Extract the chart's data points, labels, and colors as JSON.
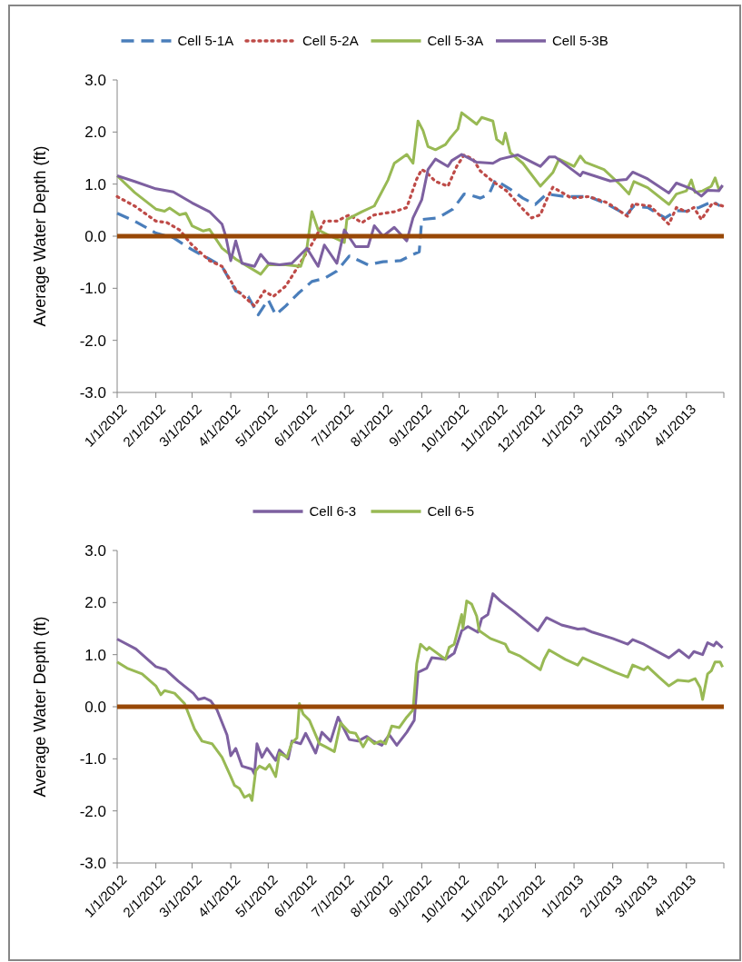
{
  "chart_data": [
    {
      "type": "line",
      "ylabel": "Average Water Depth (ft)",
      "legend": "top",
      "grid": false,
      "xlim": [
        "2012-01-01",
        "2013-05-01"
      ],
      "xticks": [
        {
          "value": "2012-01-01",
          "label": "1/1/2012"
        },
        {
          "value": "2012-02-01",
          "label": "2/1/2012"
        },
        {
          "value": "2012-03-01",
          "label": "3/1/2012"
        },
        {
          "value": "2012-04-01",
          "label": "4/1/2012"
        },
        {
          "value": "2012-05-01",
          "label": "5/1/2012"
        },
        {
          "value": "2012-06-01",
          "label": "6/1/2012"
        },
        {
          "value": "2012-07-01",
          "label": "7/1/2012"
        },
        {
          "value": "2012-08-01",
          "label": "8/1/2012"
        },
        {
          "value": "2012-09-01",
          "label": "9/1/2012"
        },
        {
          "value": "2012-10-01",
          "label": "10/1/2012"
        },
        {
          "value": "2012-11-01",
          "label": "11/1/2012"
        },
        {
          "value": "2012-12-01",
          "label": "12/1/2012"
        },
        {
          "value": "2013-01-01",
          "label": "1/1/2013"
        },
        {
          "value": "2013-02-01",
          "label": "2/1/2013"
        },
        {
          "value": "2013-03-01",
          "label": "3/1/2013"
        },
        {
          "value": "2013-04-01",
          "label": "4/1/2013"
        },
        {
          "value": "2013-05-01",
          "label": null
        }
      ],
      "ylim": [
        -3,
        3
      ],
      "yticks": [
        {
          "value": 3,
          "label": "3.0"
        },
        {
          "value": 2,
          "label": "2.0"
        },
        {
          "value": 1,
          "label": "1.0"
        },
        {
          "value": 0,
          "label": "0.0"
        },
        {
          "value": -1,
          "label": "-1.0"
        },
        {
          "value": -2,
          "label": "-2.0"
        },
        {
          "value": -3,
          "label": "-3.0"
        }
      ],
      "ref_lines": [
        {
          "axis": "y",
          "value": 0,
          "color": "#984807"
        }
      ],
      "series": [
        {
          "name": "Cell 5-1A",
          "color": "#4a7ebb",
          "line_style": "dashed",
          "x": [
            "2012-01-01",
            "2012-01-15",
            "2012-02-01",
            "2012-02-15",
            "2012-03-01",
            "2012-03-15",
            "2012-03-25",
            "2012-04-05",
            "2012-04-15",
            "2012-04-23",
            "2012-05-01",
            "2012-05-07",
            "2012-05-15",
            "2012-05-25",
            "2012-06-05",
            "2012-06-15",
            "2012-06-25",
            "2012-07-05",
            "2012-07-20",
            "2012-08-01",
            "2012-08-15",
            "2012-08-25",
            "2012-08-30",
            "2012-09-01",
            "2012-09-14",
            "2012-09-26",
            "2012-10-05",
            "2012-10-11",
            "2012-10-18",
            "2012-10-25",
            "2012-10-30",
            "2012-11-11",
            "2012-11-21",
            "2012-12-01",
            "2012-12-10",
            "2012-12-25",
            "2013-01-13",
            "2013-01-28",
            "2013-02-12",
            "2013-02-18",
            "2013-03-01",
            "2013-03-15",
            "2013-03-24",
            "2013-04-01",
            "2013-04-11",
            "2013-04-22",
            "2013-04-28"
          ],
          "values": [
            0.44,
            0.29,
            0.06,
            -0.03,
            -0.26,
            -0.44,
            -0.58,
            -1.05,
            -1.16,
            -1.51,
            -1.22,
            -1.51,
            -1.34,
            -1.1,
            -0.87,
            -0.81,
            -0.67,
            -0.38,
            -0.55,
            -0.49,
            -0.47,
            -0.35,
            -0.3,
            0.32,
            0.35,
            0.52,
            0.81,
            0.78,
            0.73,
            0.81,
            1.08,
            0.9,
            0.73,
            0.61,
            0.81,
            0.76,
            0.76,
            0.61,
            0.41,
            0.58,
            0.55,
            0.35,
            0.49,
            0.48,
            0.55,
            0.67,
            0.58
          ]
        },
        {
          "name": "Cell 5-2A",
          "color": "#be4b48",
          "line_style": "dotted",
          "x": [
            "2012-01-01",
            "2012-01-15",
            "2012-02-01",
            "2012-02-10",
            "2012-02-20",
            "2012-03-01",
            "2012-03-15",
            "2012-03-25",
            "2012-04-05",
            "2012-04-20",
            "2012-04-28",
            "2012-05-05",
            "2012-05-15",
            "2012-05-25",
            "2012-06-05",
            "2012-06-15",
            "2012-06-25",
            "2012-07-05",
            "2012-07-15",
            "2012-07-25",
            "2012-08-10",
            "2012-08-20",
            "2012-08-28",
            "2012-09-01",
            "2012-09-05",
            "2012-09-12",
            "2012-09-22",
            "2012-09-29",
            "2012-10-05",
            "2012-10-12",
            "2012-10-18",
            "2012-10-28",
            "2012-11-08",
            "2012-11-21",
            "2012-11-28",
            "2012-12-05",
            "2012-12-10",
            "2012-12-15",
            "2012-12-30",
            "2013-01-13",
            "2013-01-28",
            "2013-02-13",
            "2013-02-17",
            "2013-03-03",
            "2013-03-18",
            "2013-03-24",
            "2013-04-01",
            "2013-04-07",
            "2013-04-13",
            "2013-04-22",
            "2013-04-30"
          ],
          "values": [
            0.76,
            0.58,
            0.29,
            0.26,
            0.12,
            -0.17,
            -0.47,
            -0.58,
            -1.02,
            -1.34,
            -1.05,
            -1.16,
            -0.96,
            -0.58,
            -0.15,
            0.29,
            0.29,
            0.41,
            0.26,
            0.41,
            0.47,
            0.55,
            1.1,
            1.28,
            1.22,
            1.05,
            0.96,
            1.34,
            1.56,
            1.48,
            1.25,
            1.05,
            0.87,
            0.52,
            0.35,
            0.41,
            0.7,
            0.94,
            0.73,
            0.76,
            0.64,
            0.38,
            0.62,
            0.58,
            0.23,
            0.55,
            0.47,
            0.55,
            0.32,
            0.64,
            0.58
          ]
        },
        {
          "name": "Cell 5-3A",
          "color": "#98b954",
          "line_style": "solid",
          "x": [
            "2012-01-01",
            "2012-01-15",
            "2012-02-01",
            "2012-02-08",
            "2012-02-12",
            "2012-02-20",
            "2012-02-25",
            "2012-03-01",
            "2012-03-10",
            "2012-03-15",
            "2012-03-25",
            "2012-04-05",
            "2012-04-25",
            "2012-05-01",
            "2012-05-15",
            "2012-05-27",
            "2012-06-01",
            "2012-06-05",
            "2012-06-10",
            "2012-06-20",
            "2012-07-01",
            "2012-07-03",
            "2012-07-15",
            "2012-07-25",
            "2012-08-05",
            "2012-08-10",
            "2012-08-20",
            "2012-08-25",
            "2012-08-29",
            "2012-09-02",
            "2012-09-06",
            "2012-09-12",
            "2012-09-20",
            "2012-09-24",
            "2012-09-30",
            "2012-10-03",
            "2012-10-15",
            "2012-10-19",
            "2012-10-28",
            "2012-10-31",
            "2012-11-05",
            "2012-11-07",
            "2012-11-11",
            "2012-11-21",
            "2012-12-05",
            "2012-12-15",
            "2012-12-20",
            "2013-01-01",
            "2013-01-06",
            "2013-01-10",
            "2013-01-25",
            "2013-02-07",
            "2013-02-14",
            "2013-02-18",
            "2013-03-01",
            "2013-03-18",
            "2013-03-24",
            "2013-04-01",
            "2013-04-05",
            "2013-04-08",
            "2013-04-14",
            "2013-04-21",
            "2013-04-24",
            "2013-04-27",
            "2013-04-30"
          ],
          "values": [
            1.16,
            0.84,
            0.52,
            0.48,
            0.54,
            0.41,
            0.44,
            0.2,
            0.1,
            0.13,
            -0.23,
            -0.44,
            -0.73,
            -0.55,
            -0.55,
            -0.58,
            -0.23,
            0.47,
            0.12,
            0,
            -0.12,
            0.32,
            0.47,
            0.58,
            1.08,
            1.4,
            1.57,
            1.4,
            2.21,
            2.03,
            1.72,
            1.66,
            1.76,
            1.89,
            2.06,
            2.37,
            2.15,
            2.28,
            2.21,
            1.86,
            1.77,
            1.98,
            1.6,
            1.4,
            0.96,
            1.22,
            1.48,
            1.34,
            1.54,
            1.42,
            1.28,
            0.99,
            0.81,
            1.05,
            0.93,
            0.61,
            0.81,
            0.87,
            1.08,
            0.84,
            0.87,
            0.96,
            1.12,
            0.9,
            0.96
          ]
        },
        {
          "name": "Cell 5-3B",
          "color": "#7d60a0",
          "line_style": "solid",
          "x": [
            "2012-01-01",
            "2012-01-15",
            "2012-02-01",
            "2012-02-15",
            "2012-03-01",
            "2012-03-15",
            "2012-03-25",
            "2012-03-28",
            "2012-04-01",
            "2012-04-05",
            "2012-04-10",
            "2012-04-20",
            "2012-04-25",
            "2012-05-01",
            "2012-05-10",
            "2012-05-20",
            "2012-06-01",
            "2012-06-10",
            "2012-06-15",
            "2012-06-25",
            "2012-07-01",
            "2012-07-10",
            "2012-07-20",
            "2012-07-25",
            "2012-08-01",
            "2012-08-10",
            "2012-08-20",
            "2012-08-25",
            "2012-09-01",
            "2012-09-06",
            "2012-09-12",
            "2012-09-22",
            "2012-09-25",
            "2012-10-03",
            "2012-10-15",
            "2012-10-28",
            "2012-11-03",
            "2012-11-17",
            "2012-12-05",
            "2012-12-12",
            "2012-12-17",
            "2013-01-01",
            "2013-01-06",
            "2013-01-08",
            "2013-01-30",
            "2013-02-12",
            "2013-02-17",
            "2013-03-01",
            "2013-03-18",
            "2013-03-24",
            "2013-04-06",
            "2013-04-13",
            "2013-04-18",
            "2013-04-27",
            "2013-04-30"
          ],
          "values": [
            1.16,
            1.05,
            0.91,
            0.85,
            0.64,
            0.47,
            0.23,
            0,
            -0.47,
            -0.09,
            -0.52,
            -0.58,
            -0.35,
            -0.52,
            -0.55,
            -0.52,
            -0.23,
            -0.58,
            -0.17,
            -0.52,
            0.12,
            -0.2,
            -0.2,
            0.2,
            0,
            0.17,
            -0.09,
            0.35,
            0.7,
            1.28,
            1.48,
            1.34,
            1.45,
            1.57,
            1.42,
            1.4,
            1.48,
            1.56,
            1.34,
            1.52,
            1.52,
            1.25,
            1.16,
            1.23,
            1.06,
            1.09,
            1.23,
            1.1,
            0.83,
            1.02,
            0.9,
            0.77,
            0.88,
            0.87,
            0.98
          ]
        }
      ]
    },
    {
      "type": "line",
      "ylabel": "Average Water Depth (ft)",
      "legend": "top",
      "grid": false,
      "xlim": [
        "2012-01-01",
        "2013-05-01"
      ],
      "xticks": [
        {
          "value": "2012-01-01",
          "label": "1/1/2012"
        },
        {
          "value": "2012-02-01",
          "label": "2/1/2012"
        },
        {
          "value": "2012-03-01",
          "label": "3/1/2012"
        },
        {
          "value": "2012-04-01",
          "label": "4/1/2012"
        },
        {
          "value": "2012-05-01",
          "label": "5/1/2012"
        },
        {
          "value": "2012-06-01",
          "label": "6/1/2012"
        },
        {
          "value": "2012-07-01",
          "label": "7/1/2012"
        },
        {
          "value": "2012-08-01",
          "label": "8/1/2012"
        },
        {
          "value": "2012-09-01",
          "label": "9/1/2012"
        },
        {
          "value": "2012-10-01",
          "label": "10/1/2012"
        },
        {
          "value": "2012-11-01",
          "label": "11/1/2012"
        },
        {
          "value": "2012-12-01",
          "label": "12/1/2012"
        },
        {
          "value": "2013-01-01",
          "label": "1/1/2013"
        },
        {
          "value": "2013-02-01",
          "label": "2/1/2013"
        },
        {
          "value": "2013-03-01",
          "label": "3/1/2013"
        },
        {
          "value": "2013-04-01",
          "label": "4/1/2013"
        },
        {
          "value": "2013-05-01",
          "label": null
        }
      ],
      "ylim": [
        -3,
        3
      ],
      "yticks": [
        {
          "value": 3,
          "label": "3.0"
        },
        {
          "value": 2,
          "label": "2.0"
        },
        {
          "value": 1,
          "label": "1.0"
        },
        {
          "value": 0,
          "label": "0.0"
        },
        {
          "value": -1,
          "label": "-1.0"
        },
        {
          "value": -2,
          "label": "-2.0"
        },
        {
          "value": -3,
          "label": "-3.0"
        }
      ],
      "ref_lines": [
        {
          "axis": "y",
          "value": 0,
          "color": "#984807"
        }
      ],
      "series": [
        {
          "name": "Cell 6-3",
          "color": "#7d60a0",
          "line_style": "solid",
          "x": [
            "2012-01-01",
            "2012-01-16",
            "2012-02-01",
            "2012-02-09",
            "2012-02-19",
            "2012-03-02",
            "2012-03-06",
            "2012-03-11",
            "2012-03-16",
            "2012-03-21",
            "2012-03-29",
            "2012-04-01",
            "2012-04-05",
            "2012-04-10",
            "2012-04-18",
            "2012-04-20",
            "2012-04-22",
            "2012-04-26",
            "2012-04-30",
            "2012-05-07",
            "2012-05-10",
            "2012-05-17",
            "2012-05-20",
            "2012-05-27",
            "2012-05-31",
            "2012-06-08",
            "2012-06-13",
            "2012-06-20",
            "2012-06-26",
            "2012-07-05",
            "2012-07-12",
            "2012-07-19",
            "2012-07-24",
            "2012-07-31",
            "2012-08-06",
            "2012-08-12",
            "2012-08-20",
            "2012-08-26",
            "2012-08-29",
            "2012-09-05",
            "2012-09-09",
            "2012-09-20",
            "2012-09-27",
            "2012-10-03",
            "2012-10-08",
            "2012-10-16",
            "2012-10-19",
            "2012-10-24",
            "2012-10-28",
            "2012-11-03",
            "2012-11-14",
            "2012-12-03",
            "2012-12-10",
            "2012-12-22",
            "2013-01-04",
            "2013-01-09",
            "2013-01-16",
            "2013-02-01",
            "2013-02-13",
            "2013-02-17",
            "2013-02-26",
            "2013-03-18",
            "2013-03-26",
            "2013-04-03",
            "2013-04-07",
            "2013-04-14",
            "2013-04-18",
            "2013-04-23",
            "2013-04-25",
            "2013-04-30"
          ],
          "values": [
            1.3,
            1.11,
            0.77,
            0.71,
            0.49,
            0.26,
            0.14,
            0.17,
            0.11,
            -0.06,
            -0.54,
            -0.94,
            -0.8,
            -1.14,
            -1.2,
            -1.29,
            -0.71,
            -0.97,
            -0.8,
            -1.03,
            -0.83,
            -1,
            -0.66,
            -0.71,
            -0.51,
            -0.89,
            -0.49,
            -0.66,
            -0.2,
            -0.63,
            -0.66,
            -0.57,
            -0.66,
            -0.74,
            -0.54,
            -0.74,
            -0.49,
            -0.26,
            0.66,
            0.74,
            0.94,
            0.91,
            1.03,
            1.46,
            1.54,
            1.43,
            1.69,
            1.77,
            2.17,
            2.03,
            1.83,
            1.46,
            1.71,
            1.57,
            1.49,
            1.5,
            1.43,
            1.31,
            1.2,
            1.29,
            1.2,
            0.94,
            1.09,
            0.94,
            1.06,
            1,
            1.23,
            1.17,
            1.24,
            1.13
          ]
        },
        {
          "name": "Cell 6-5",
          "color": "#98b954",
          "line_style": "solid",
          "x": [
            "2012-01-01",
            "2012-01-09",
            "2012-01-21",
            "2012-02-01",
            "2012-02-05",
            "2012-02-08",
            "2012-02-16",
            "2012-02-24",
            "2012-03-03",
            "2012-03-09",
            "2012-03-17",
            "2012-03-25",
            "2012-04-01",
            "2012-04-04",
            "2012-04-08",
            "2012-04-12",
            "2012-04-16",
            "2012-04-18",
            "2012-04-21",
            "2012-04-24",
            "2012-04-29",
            "2012-05-02",
            "2012-05-07",
            "2012-05-10",
            "2012-05-16",
            "2012-05-20",
            "2012-05-24",
            "2012-05-26",
            "2012-05-29",
            "2012-06-03",
            "2012-06-11",
            "2012-06-16",
            "2012-06-23",
            "2012-06-28",
            "2012-07-05",
            "2012-07-10",
            "2012-07-16",
            "2012-07-20",
            "2012-07-25",
            "2012-07-30",
            "2012-08-03",
            "2012-08-08",
            "2012-08-14",
            "2012-08-20",
            "2012-08-25",
            "2012-08-28",
            "2012-08-31",
            "2012-09-05",
            "2012-09-07",
            "2012-09-20",
            "2012-09-23",
            "2012-09-27",
            "2012-10-03",
            "2012-10-04",
            "2012-10-07",
            "2012-10-11",
            "2012-10-15",
            "2012-10-17",
            "2012-10-26",
            "2012-11-07",
            "2012-11-10",
            "2012-11-19",
            "2012-12-05",
            "2012-12-08",
            "2012-12-12",
            "2012-12-25",
            "2013-01-04",
            "2013-01-08",
            "2013-02-03",
            "2013-02-13",
            "2013-02-17",
            "2013-02-26",
            "2013-03-01",
            "2013-03-10",
            "2013-03-18",
            "2013-03-25",
            "2013-04-03",
            "2013-04-08",
            "2013-04-12",
            "2013-04-14",
            "2013-04-18",
            "2013-04-21",
            "2013-04-24",
            "2013-04-28",
            "2013-04-30"
          ],
          "values": [
            0.86,
            0.74,
            0.63,
            0.4,
            0.23,
            0.31,
            0.26,
            0.06,
            -0.43,
            -0.66,
            -0.71,
            -0.97,
            -1.34,
            -1.51,
            -1.57,
            -1.74,
            -1.69,
            -1.8,
            -1.23,
            -1.14,
            -1.2,
            -1.11,
            -1.34,
            -0.89,
            -0.97,
            -0.69,
            -0.6,
            0.06,
            -0.14,
            -0.26,
            -0.71,
            -0.77,
            -0.86,
            -0.31,
            -0.49,
            -0.51,
            -0.77,
            -0.6,
            -0.71,
            -0.66,
            -0.71,
            -0.37,
            -0.4,
            -0.2,
            -0.06,
            0.83,
            1.2,
            1.09,
            1.14,
            0.91,
            1.14,
            1.2,
            1.77,
            1.51,
            2.03,
            1.97,
            1.74,
            1.46,
            1.31,
            1.2,
            1.06,
            0.97,
            0.71,
            0.91,
            1.09,
            0.91,
            0.8,
            0.94,
            0.66,
            0.57,
            0.8,
            0.71,
            0.77,
            0.57,
            0.4,
            0.51,
            0.49,
            0.54,
            0.37,
            0.14,
            0.63,
            0.69,
            0.86,
            0.86,
            0.76
          ]
        }
      ]
    }
  ]
}
